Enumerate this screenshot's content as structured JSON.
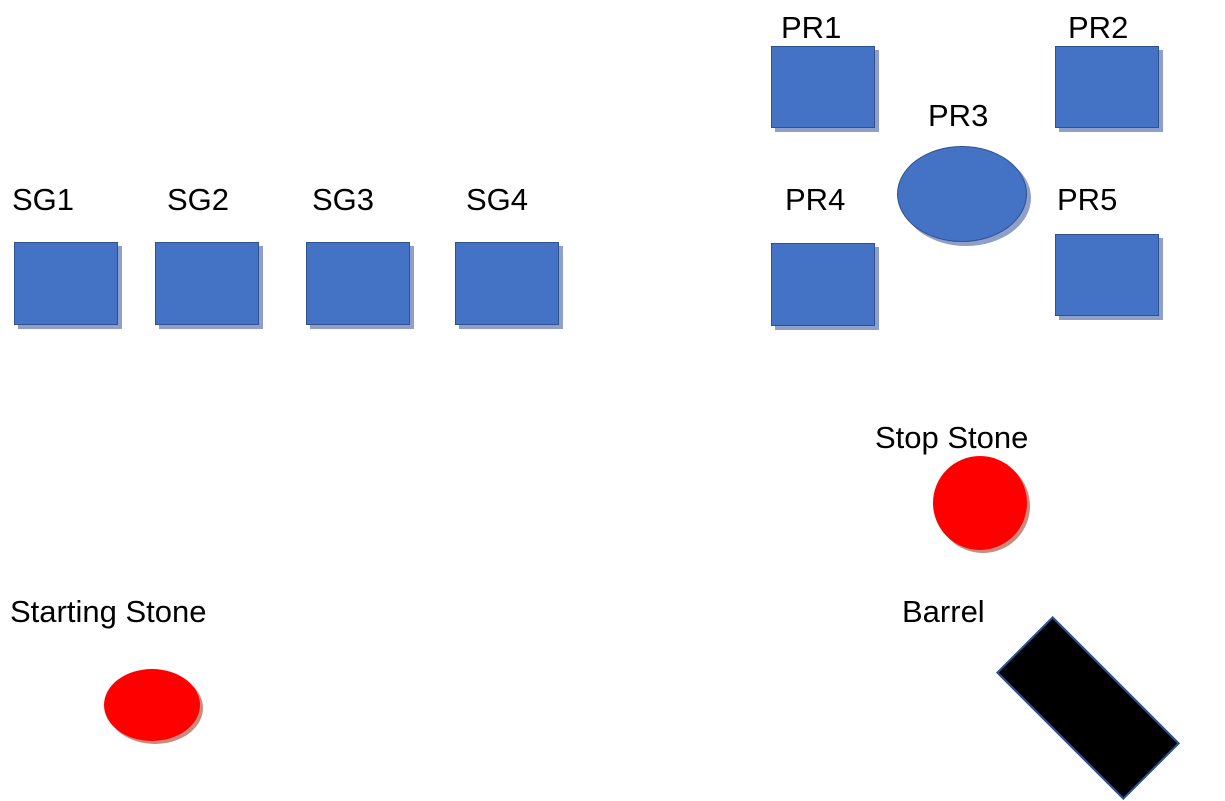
{
  "colors": {
    "station": "#4472c4",
    "stone": "#ff0000",
    "barrel": "#000000"
  },
  "labels": {
    "sg1": "SG1",
    "sg2": "SG2",
    "sg3": "SG3",
    "sg4": "SG4",
    "pr1": "PR1",
    "pr2": "PR2",
    "pr3": "PR3",
    "pr4": "PR4",
    "pr5": "PR5",
    "stop_stone": "Stop Stone",
    "starting_stone": "Starting Stone",
    "barrel": "Barrel"
  }
}
